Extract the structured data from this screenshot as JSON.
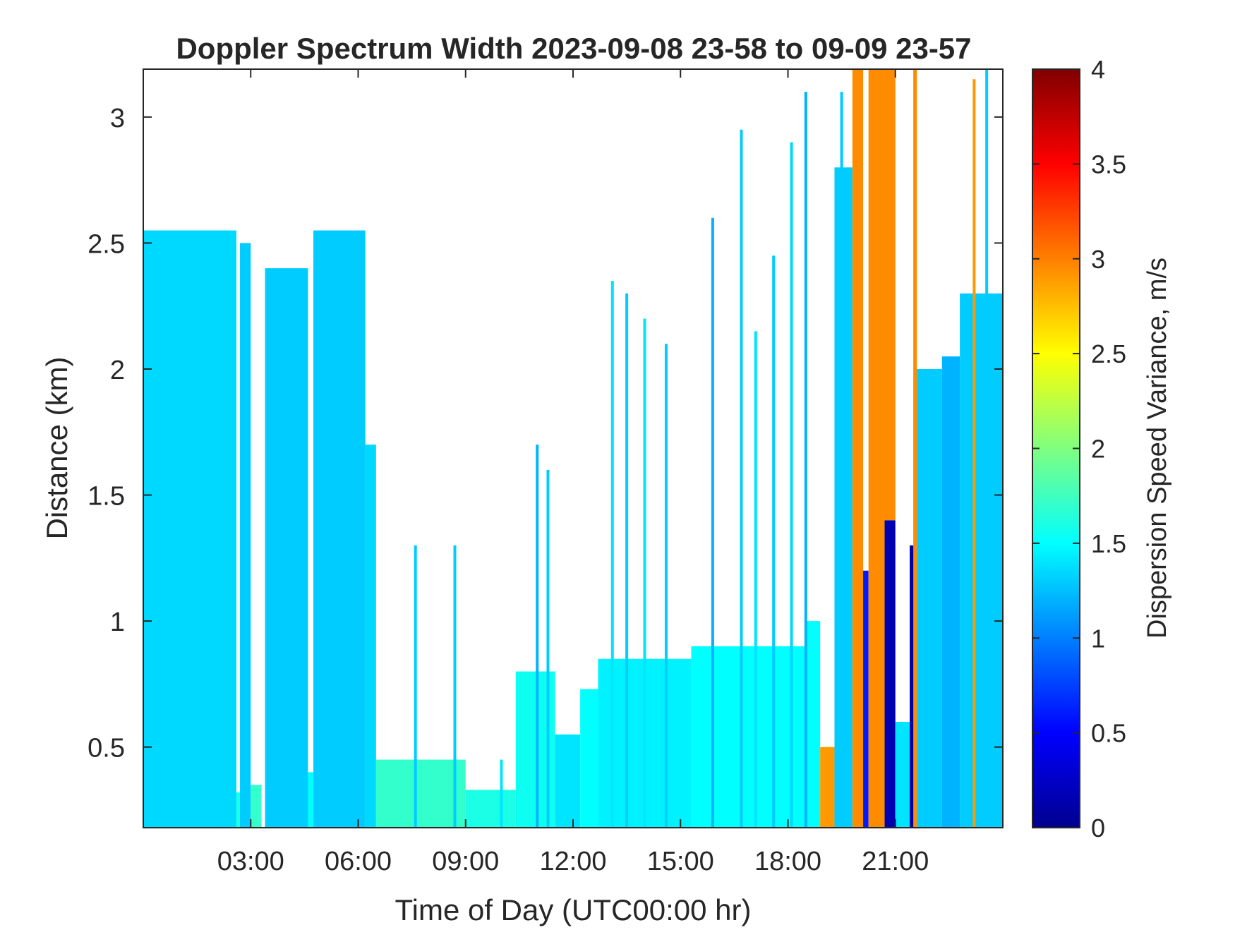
{
  "chart_data": {
    "type": "heatmap",
    "title": "Doppler Spectrum Width 2023-09-08 23-58 to 09-09 23-57",
    "xlabel": "Time of Day (UTC00:00 hr)",
    "ylabel": "Distance (km)",
    "colorbar_label": "Dispersion Speed Variance, m/s",
    "xlim_hours": [
      0.0,
      24.0
    ],
    "ylim_km": [
      0.18,
      3.19
    ],
    "clim": [
      0,
      4
    ],
    "colormap": "jet",
    "grid": false,
    "x_ticks": [
      {
        "hour": 3,
        "label": "03:00"
      },
      {
        "hour": 6,
        "label": "06:00"
      },
      {
        "hour": 9,
        "label": "09:00"
      },
      {
        "hour": 12,
        "label": "12:00"
      },
      {
        "hour": 15,
        "label": "15:00"
      },
      {
        "hour": 18,
        "label": "18:00"
      },
      {
        "hour": 21,
        "label": "21:00"
      }
    ],
    "y_ticks": [
      {
        "value": 0.5,
        "label": "0.5"
      },
      {
        "value": 1.0,
        "label": "1"
      },
      {
        "value": 1.5,
        "label": "1.5"
      },
      {
        "value": 2.0,
        "label": "2"
      },
      {
        "value": 2.5,
        "label": "2.5"
      },
      {
        "value": 3.0,
        "label": "3"
      }
    ],
    "colorbar_ticks": [
      {
        "value": 0,
        "label": "0"
      },
      {
        "value": 0.5,
        "label": "0.5"
      },
      {
        "value": 1,
        "label": "1"
      },
      {
        "value": 1.5,
        "label": "1.5"
      },
      {
        "value": 2,
        "label": "2"
      },
      {
        "value": 2.5,
        "label": "2.5"
      },
      {
        "value": 3,
        "label": "3"
      },
      {
        "value": 3.5,
        "label": "3.5"
      },
      {
        "value": 4,
        "label": "4"
      }
    ],
    "regions": [
      {
        "t0": 0.0,
        "t1": 2.6,
        "z0": 0.18,
        "z1": 2.55,
        "value": 1.35
      },
      {
        "t0": 2.6,
        "t1": 2.7,
        "z0": 0.18,
        "z1": 0.32,
        "value": 1.6
      },
      {
        "t0": 2.7,
        "t1": 3.0,
        "z0": 0.18,
        "z1": 2.5,
        "value": 1.3
      },
      {
        "t0": 3.0,
        "t1": 3.3,
        "z0": 0.18,
        "z1": 0.35,
        "value": 1.7
      },
      {
        "t0": 3.4,
        "t1": 4.6,
        "z0": 0.18,
        "z1": 2.4,
        "value": 1.3
      },
      {
        "t0": 4.6,
        "t1": 4.75,
        "z0": 0.18,
        "z1": 0.4,
        "value": 1.5
      },
      {
        "t0": 4.75,
        "t1": 6.2,
        "z0": 0.18,
        "z1": 2.55,
        "value": 1.3
      },
      {
        "t0": 6.2,
        "t1": 6.5,
        "z0": 0.18,
        "z1": 1.7,
        "value": 1.35
      },
      {
        "t0": 6.5,
        "t1": 9.0,
        "z0": 0.18,
        "z1": 0.45,
        "value": 1.7
      },
      {
        "t0": 9.0,
        "t1": 10.4,
        "z0": 0.18,
        "z1": 0.33,
        "value": 1.6
      },
      {
        "t0": 10.4,
        "t1": 11.5,
        "z0": 0.18,
        "z1": 0.8,
        "value": 1.55
      },
      {
        "t0": 11.5,
        "t1": 12.2,
        "z0": 0.18,
        "z1": 0.55,
        "value": 1.4
      },
      {
        "t0": 12.2,
        "t1": 12.7,
        "z0": 0.18,
        "z1": 0.73,
        "value": 1.5
      },
      {
        "t0": 12.7,
        "t1": 15.3,
        "z0": 0.18,
        "z1": 0.85,
        "value": 1.45
      },
      {
        "t0": 15.3,
        "t1": 18.5,
        "z0": 0.18,
        "z1": 0.9,
        "value": 1.5
      },
      {
        "t0": 18.5,
        "t1": 18.9,
        "z0": 0.18,
        "z1": 1.0,
        "value": 1.5
      },
      {
        "t0": 18.9,
        "t1": 19.3,
        "z0": 0.18,
        "z1": 0.5,
        "value": 2.9
      },
      {
        "t0": 19.3,
        "t1": 19.8,
        "z0": 0.18,
        "z1": 2.8,
        "value": 1.3
      },
      {
        "t0": 19.8,
        "t1": 20.1,
        "z0": 0.18,
        "z1": 3.19,
        "value": 2.95
      },
      {
        "t0": 20.1,
        "t1": 20.25,
        "z0": 0.18,
        "z1": 1.2,
        "value": 0.6
      },
      {
        "t0": 20.25,
        "t1": 20.7,
        "z0": 0.18,
        "z1": 3.19,
        "value": 2.95
      },
      {
        "t0": 20.7,
        "t1": 21.0,
        "z0": 0.18,
        "z1": 1.4,
        "value": 0.2
      },
      {
        "t0": 20.7,
        "t1": 21.0,
        "z0": 1.4,
        "z1": 3.19,
        "value": 2.95
      },
      {
        "t0": 21.0,
        "t1": 21.4,
        "z0": 0.18,
        "z1": 0.6,
        "value": 1.4
      },
      {
        "t0": 21.4,
        "t1": 21.55,
        "z0": 0.18,
        "z1": 1.3,
        "value": 0.15
      },
      {
        "t0": 21.5,
        "t1": 21.6,
        "z0": 0.18,
        "z1": 3.19,
        "value": 2.95
      },
      {
        "t0": 21.6,
        "t1": 22.3,
        "z0": 0.18,
        "z1": 2.0,
        "value": 1.3
      },
      {
        "t0": 22.3,
        "t1": 22.8,
        "z0": 0.18,
        "z1": 2.05,
        "value": 1.2
      },
      {
        "t0": 22.8,
        "t1": 24.0,
        "z0": 0.18,
        "z1": 2.3,
        "value": 1.3
      }
    ],
    "streaks": [
      {
        "t": 7.6,
        "z1": 1.3,
        "value": 1.3
      },
      {
        "t": 8.7,
        "z1": 1.3,
        "value": 1.3
      },
      {
        "t": 10.0,
        "z1": 0.45,
        "value": 1.4
      },
      {
        "t": 11.0,
        "z1": 1.7,
        "value": 1.2
      },
      {
        "t": 11.3,
        "z1": 1.6,
        "value": 1.3
      },
      {
        "t": 13.1,
        "z1": 2.35,
        "value": 1.4
      },
      {
        "t": 13.5,
        "z1": 2.3,
        "value": 1.3
      },
      {
        "t": 14.0,
        "z1": 2.2,
        "value": 1.4
      },
      {
        "t": 14.6,
        "z1": 2.1,
        "value": 1.3
      },
      {
        "t": 15.9,
        "z1": 2.6,
        "value": 1.2
      },
      {
        "t": 16.7,
        "z1": 2.95,
        "value": 1.3
      },
      {
        "t": 17.1,
        "z1": 2.15,
        "value": 1.4
      },
      {
        "t": 17.6,
        "z1": 2.45,
        "value": 1.3
      },
      {
        "t": 18.1,
        "z1": 2.9,
        "value": 1.35
      },
      {
        "t": 18.5,
        "z1": 3.1,
        "value": 1.2
      },
      {
        "t": 19.5,
        "z1": 3.1,
        "value": 1.3
      },
      {
        "t": 23.2,
        "z1": 3.15,
        "value": 2.9
      },
      {
        "t": 23.55,
        "z1": 3.19,
        "value": 1.3
      }
    ]
  }
}
